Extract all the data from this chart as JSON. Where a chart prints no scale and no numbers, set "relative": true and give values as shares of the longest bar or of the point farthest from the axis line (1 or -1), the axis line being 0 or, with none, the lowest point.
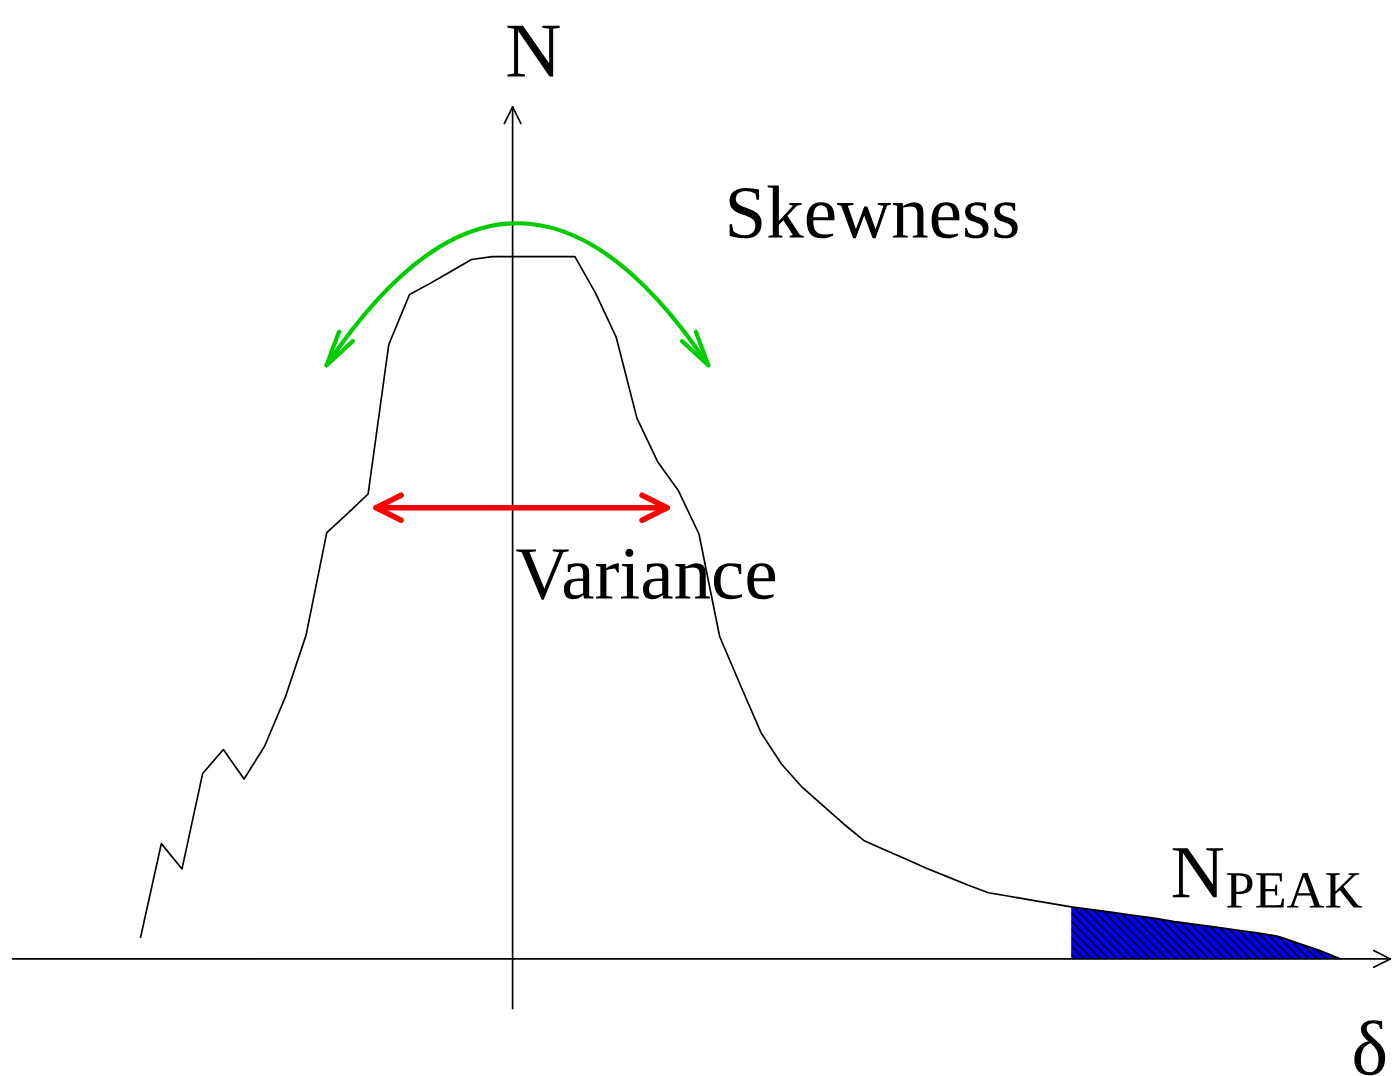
{
  "chart_data": {
    "type": "line",
    "relative": true,
    "xlabel": "δ",
    "ylabel": "N",
    "categories": [
      null,
      null,
      null,
      null,
      null,
      null,
      null,
      null,
      null,
      null,
      null,
      null,
      null,
      null,
      null,
      null,
      null,
      null,
      null,
      null,
      null,
      null,
      null,
      null,
      null,
      null,
      null,
      null,
      null,
      null,
      null,
      null,
      null,
      null,
      null,
      null,
      null,
      null,
      null,
      null,
      null,
      null,
      null,
      null,
      null,
      null,
      null,
      null,
      null,
      null,
      null,
      null,
      null,
      null,
      null,
      null,
      null,
      null,
      null
    ],
    "series": [
      {
        "color": "#000000",
        "values": [
          0.031,
          0.164,
          0.128,
          0.264,
          0.298,
          0.256,
          0.303,
          0.373,
          0.461,
          0.607,
          0.634,
          0.662,
          0.875,
          0.946,
          0.962,
          0.979,
          0.996,
          1,
          1,
          1,
          1,
          1,
          0.948,
          0.885,
          0.77,
          0.708,
          0.667,
          0.605,
          0.459,
          0.39,
          0.322,
          0.277,
          0.244,
          0.218,
          0.192,
          0.168,
          0.155,
          0.142,
          0.129,
          0.117,
          0.105,
          0.094,
          0.089,
          0.084,
          0.079,
          0.074,
          0.07,
          0.066,
          0.062,
          0.058,
          0.053,
          0.049,
          0.045,
          0.041,
          0.037,
          0.032,
          0.022,
          0.012,
          0
        ]
      },
      {
        "type": "area",
        "color": "#0000ff",
        "values": [
          null,
          null,
          null,
          null,
          null,
          null,
          null,
          null,
          null,
          null,
          null,
          null,
          null,
          null,
          null,
          null,
          null,
          null,
          null,
          null,
          null,
          null,
          null,
          null,
          null,
          null,
          null,
          null,
          null,
          null,
          null,
          null,
          null,
          null,
          null,
          null,
          null,
          null,
          null,
          null,
          null,
          null,
          null,
          null,
          null,
          0.074,
          0.07,
          0.066,
          0.062,
          0.058,
          0.053,
          0.049,
          0.045,
          0.041,
          0.037,
          0.032,
          0.022,
          0.012,
          0
        ]
      }
    ],
    "annotations": [
      "Variance",
      "Skewness",
      "N$_{PEAK}$"
    ],
    "line_style": "solid"
  }
}
